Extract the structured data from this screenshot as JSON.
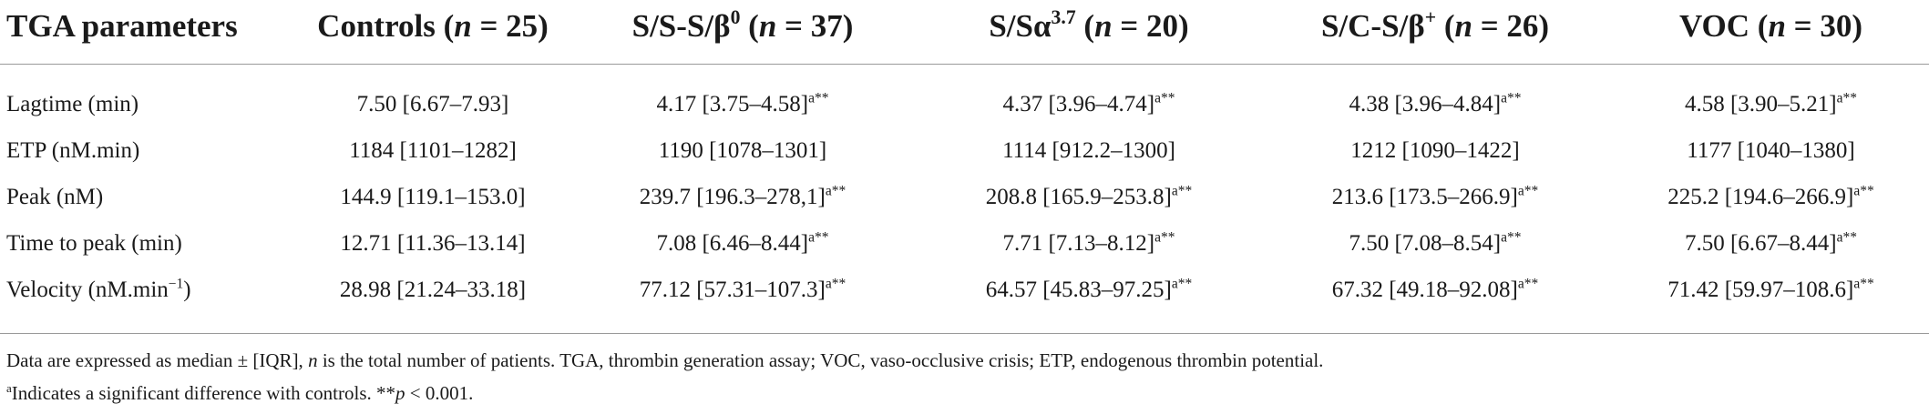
{
  "table": {
    "headers": [
      {
        "label": "TGA parameters",
        "n_prefix": "",
        "n_value": "",
        "sup": ""
      },
      {
        "label": "Controls (",
        "n_prefix": "n",
        "n_value": " = 25)",
        "sup": ""
      },
      {
        "label": "S/S-S/β",
        "sup": "0",
        "label_after": " (",
        "n_prefix": "n",
        "n_value": " = 37)"
      },
      {
        "label": "S/Sα",
        "sup": "3.7",
        "label_after": " (",
        "n_prefix": "n",
        "n_value": " = 20)"
      },
      {
        "label": "S/C-S/β",
        "sup": "+",
        "label_after": " (",
        "n_prefix": "n",
        "n_value": " = 26)"
      },
      {
        "label": "VOC (",
        "n_prefix": "n",
        "n_value": " = 30)",
        "sup": ""
      }
    ],
    "rows": [
      {
        "param": "Lagtime (min)",
        "param_sup": "",
        "param_after": "",
        "cells": [
          {
            "value": "7.50 [6.67–7.93]",
            "sup": ""
          },
          {
            "value": "4.17 [3.75–4.58]",
            "sup": "a**"
          },
          {
            "value": "4.37 [3.96–4.74]",
            "sup": "a**"
          },
          {
            "value": "4.38 [3.96–4.84]",
            "sup": "a**"
          },
          {
            "value": "4.58 [3.90–5.21]",
            "sup": "a**"
          }
        ]
      },
      {
        "param": "ETP (nM.min)",
        "param_sup": "",
        "param_after": "",
        "cells": [
          {
            "value": "1184 [1101–1282]",
            "sup": ""
          },
          {
            "value": "1190 [1078–1301]",
            "sup": ""
          },
          {
            "value": "1114 [912.2–1300]",
            "sup": ""
          },
          {
            "value": "1212 [1090–1422]",
            "sup": ""
          },
          {
            "value": "1177 [1040–1380]",
            "sup": ""
          }
        ]
      },
      {
        "param": "Peak (nM)",
        "param_sup": "",
        "param_after": "",
        "cells": [
          {
            "value": "144.9 [119.1–153.0]",
            "sup": ""
          },
          {
            "value": "239.7 [196.3–278,1]",
            "sup": "a**"
          },
          {
            "value": "208.8 [165.9–253.8]",
            "sup": "a**"
          },
          {
            "value": "213.6 [173.5–266.9]",
            "sup": "a**"
          },
          {
            "value": "225.2 [194.6–266.9]",
            "sup": "a**"
          }
        ]
      },
      {
        "param": "Time to peak (min)",
        "param_sup": "",
        "param_after": "",
        "cells": [
          {
            "value": "12.71 [11.36–13.14]",
            "sup": ""
          },
          {
            "value": "7.08 [6.46–8.44]",
            "sup": "a**"
          },
          {
            "value": "7.71 [7.13–8.12]",
            "sup": "a**"
          },
          {
            "value": "7.50 [7.08–8.54]",
            "sup": "a**"
          },
          {
            "value": "7.50 [6.67–8.44]",
            "sup": "a**"
          }
        ]
      },
      {
        "param": "Velocity (nM.min",
        "param_sup": "−1",
        "param_after": ")",
        "cells": [
          {
            "value": "28.98 [21.24–33.18]",
            "sup": ""
          },
          {
            "value": "77.12 [57.31–107.3]",
            "sup": "a**"
          },
          {
            "value": "64.57 [45.83–97.25]",
            "sup": "a**"
          },
          {
            "value": "67.32 [49.18–92.08]",
            "sup": "a**"
          },
          {
            "value": "71.42 [59.97–108.6]",
            "sup": "a**"
          }
        ]
      }
    ]
  },
  "footnotes": {
    "line1_pre": "Data are expressed as median ± [IQR], ",
    "line1_n": "n",
    "line1_post": " is the total number of patients. TGA, thrombin generation assay; VOC, vaso-occlusive crisis; ETP, endogenous thrombin potential.",
    "line2_sup": "a",
    "line2_pre": "Indicates a significant difference with controls. **",
    "line2_p": "p",
    "line2_post": " < 0.001."
  }
}
